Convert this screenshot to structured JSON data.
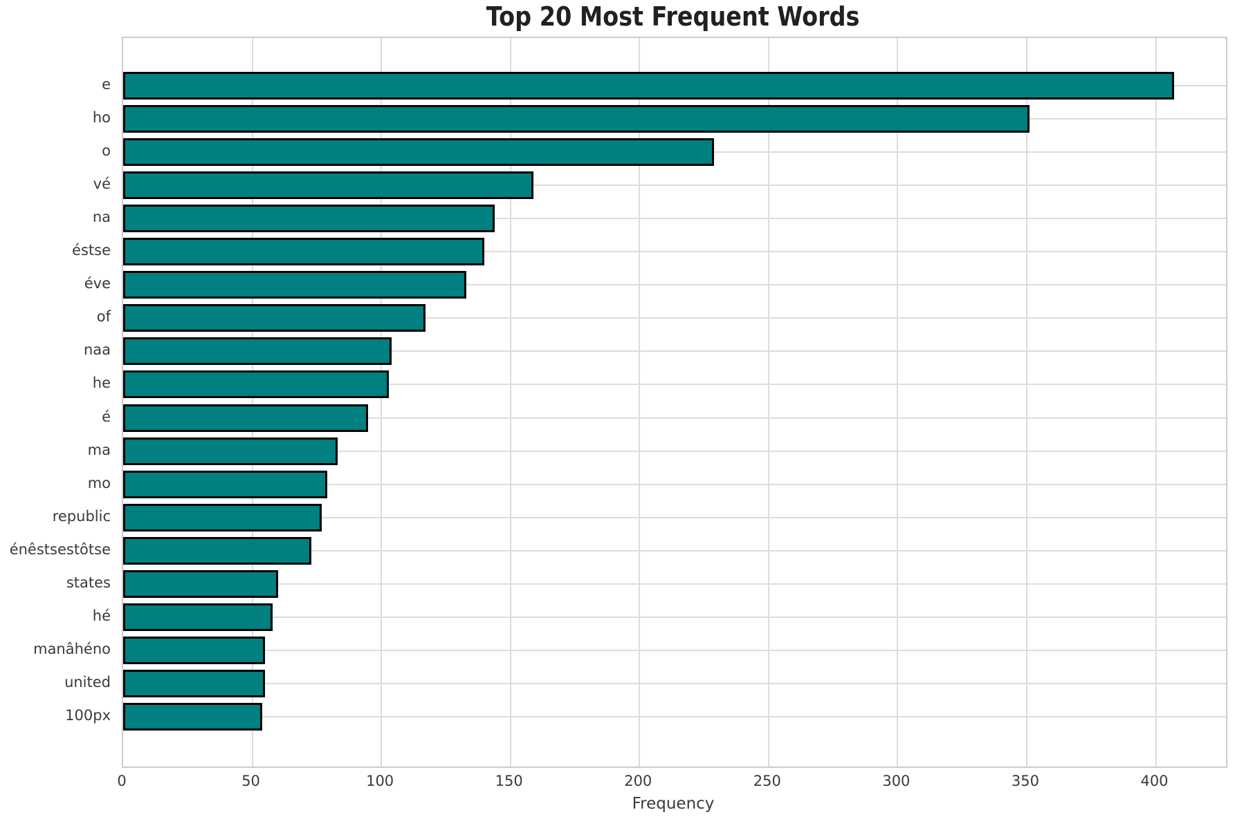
{
  "chart_data": {
    "type": "bar",
    "orientation": "horizontal",
    "title": "Top 20 Most Frequent Words",
    "xlabel": "Frequency",
    "ylabel": "",
    "categories": [
      "e",
      "ho",
      "o",
      "vé",
      "na",
      "éstse",
      "éve",
      "of",
      "naa",
      "he",
      "é",
      "ma",
      "mo",
      "republic",
      "énêstsestôtse",
      "states",
      "hé",
      "manâhéno",
      "united",
      "100px"
    ],
    "values": [
      407,
      351,
      229,
      159,
      144,
      140,
      133,
      117,
      104,
      103,
      95,
      83,
      79,
      77,
      73,
      60,
      58,
      55,
      55,
      54
    ],
    "xticks": [
      0,
      50,
      100,
      150,
      200,
      250,
      300,
      350,
      400
    ],
    "xlim": [
      0,
      427.2
    ],
    "grid": true,
    "legend": "none",
    "bar_color": "#008080",
    "bar_edge_color": "#000000",
    "grid_color": "#dcdcdc",
    "background_color": "#ffffff"
  }
}
